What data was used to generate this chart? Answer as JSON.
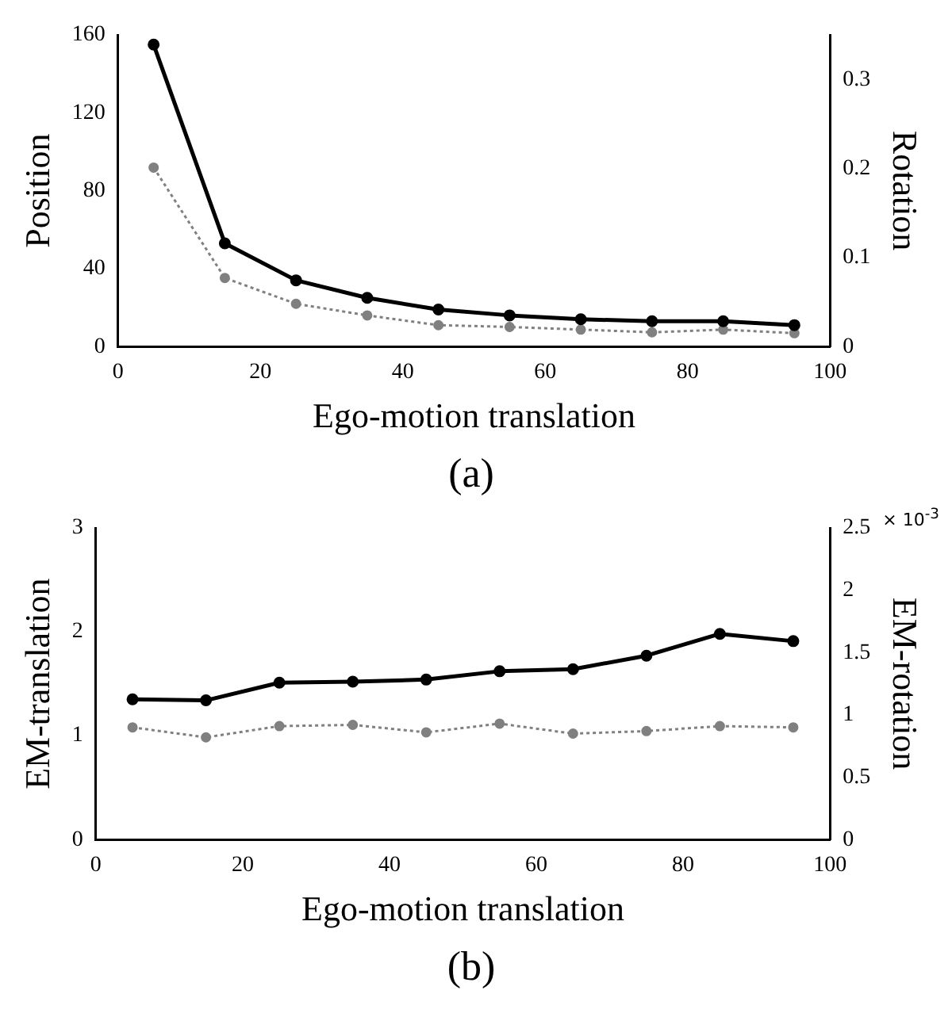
{
  "chart_data": [
    {
      "type": "line",
      "title": "(a)",
      "xlabel": "Ego-motion translation",
      "ylabel": "Position",
      "y2label": "Rotation",
      "x": [
        5,
        15,
        25,
        35,
        45,
        55,
        65,
        75,
        85,
        95
      ],
      "marker": "circle",
      "series": [
        {
          "color": "#000000",
          "line_style": "solid",
          "values": [
            155,
            53,
            34,
            25,
            19,
            16,
            14,
            13,
            13,
            11
          ]
        },
        {
          "color": "#808080",
          "line_style": "dotted",
          "axis": "y2",
          "values": [
            0.201,
            0.077,
            0.048,
            0.035,
            0.024,
            0.022,
            0.019,
            0.016,
            0.019,
            0.015
          ]
        }
      ],
      "xlim": [
        0,
        100
      ],
      "xticks": [
        0,
        20,
        40,
        60,
        80,
        100
      ],
      "ylim": [
        0,
        160
      ],
      "yticks": [
        0,
        40,
        80,
        120,
        160
      ],
      "y2lim": [
        0,
        0.35
      ],
      "y2ticks": [
        0,
        0.1,
        0.2,
        0.3
      ]
    },
    {
      "type": "line",
      "title": "(b)",
      "xlabel": "Ego-motion translation",
      "ylabel": "EM-translation",
      "y2label": "EM-rotation",
      "annotations": [
        "× 10$^{-3}$"
      ],
      "x": [
        5,
        15,
        25,
        35,
        45,
        55,
        65,
        75,
        85,
        95
      ],
      "marker": "circle",
      "series": [
        {
          "color": "#000000",
          "line_style": "solid",
          "values": [
            1.35,
            1.34,
            1.51,
            1.52,
            1.54,
            1.62,
            1.64,
            1.77,
            1.98,
            1.91
          ]
        },
        {
          "color": "#808080",
          "line_style": "dotted",
          "axis": "y2",
          "values": [
            0.9,
            0.82,
            0.91,
            0.92,
            0.86,
            0.93,
            0.85,
            0.87,
            0.91,
            0.9
          ]
        }
      ],
      "xlim": [
        0,
        100
      ],
      "xticks": [
        0,
        20,
        40,
        60,
        80,
        100
      ],
      "ylim": [
        0,
        3
      ],
      "yticks": [
        0,
        1,
        2,
        3
      ],
      "y2lim": [
        0,
        2.5
      ],
      "y2ticks": [
        0,
        0.5,
        1,
        1.5,
        2,
        2.5
      ]
    }
  ]
}
